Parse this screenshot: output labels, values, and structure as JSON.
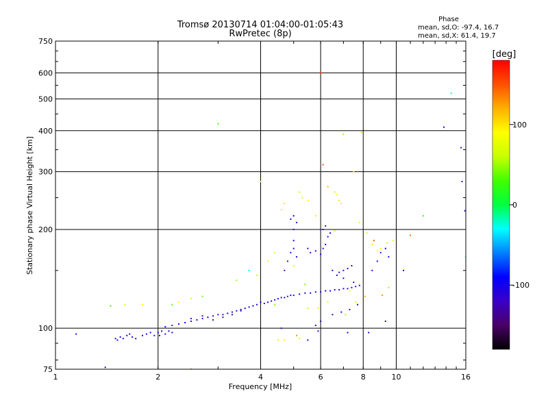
{
  "chart_data": {
    "type": "scatter",
    "title": "Tromsø 20130714 01:04:00-01:05:43",
    "subtitle": "RwPretec (8p)",
    "xlabel": "Frequency [MHz]",
    "ylabel": "Stationary phase Virtual Height [km]",
    "x_scale": "log",
    "y_scale": "log",
    "xlim": [
      1,
      16
    ],
    "ylim": [
      75,
      750
    ],
    "x_ticks": [
      1,
      2,
      4,
      6,
      8,
      10,
      16
    ],
    "y_ticks": [
      75,
      100,
      200,
      300,
      400,
      500,
      600,
      750
    ],
    "grid": true,
    "stats_header": "Phase",
    "stats_lines": [
      "mean, sd,O: -97.4, 16.7",
      "mean, sd,X:  61.4, 19.7"
    ],
    "colorbar": {
      "label": "[deg]",
      "min": -180,
      "max": 180,
      "ticks": [
        -100,
        0,
        100
      ],
      "colors": [
        "#000000",
        "#4a0068",
        "#3a00c8",
        "#0000ff",
        "#0080ff",
        "#00ffff",
        "#00ff40",
        "#40ff00",
        "#c8ff00",
        "#ffff00",
        "#ffb000",
        "#ff5000",
        "#ff0000"
      ]
    },
    "series": [
      {
        "points": [
          [
            1.15,
            96,
            -105
          ],
          [
            1.4,
            76,
            -100
          ],
          [
            1.5,
            93,
            -110
          ],
          [
            1.52,
            92,
            -105
          ],
          [
            1.55,
            94,
            -108
          ],
          [
            1.58,
            93,
            -112
          ],
          [
            1.62,
            95,
            -104
          ],
          [
            1.65,
            96,
            -106
          ],
          [
            1.68,
            94,
            -100
          ],
          [
            1.72,
            93,
            -110
          ],
          [
            1.8,
            95,
            -108
          ],
          [
            1.85,
            96,
            -104
          ],
          [
            1.9,
            97,
            -106
          ],
          [
            1.95,
            95,
            -112
          ],
          [
            2.0,
            97,
            -108
          ],
          [
            2.02,
            95,
            -102
          ],
          [
            2.05,
            98,
            -106
          ],
          [
            2.1,
            96,
            -110
          ],
          [
            2.15,
            98,
            -104
          ],
          [
            2.2,
            97,
            -108
          ],
          [
            2.1,
            101,
            -104
          ],
          [
            2.2,
            102,
            -110
          ],
          [
            2.3,
            103,
            -100
          ],
          [
            2.4,
            104,
            -106
          ],
          [
            2.5,
            105,
            -108
          ],
          [
            2.6,
            106,
            -104
          ],
          [
            2.7,
            107,
            -110
          ],
          [
            2.8,
            108,
            -102
          ],
          [
            2.9,
            109,
            -106
          ],
          [
            3.0,
            110,
            -108
          ],
          [
            3.1,
            110,
            -112
          ],
          [
            3.2,
            111,
            -104
          ],
          [
            3.3,
            112,
            -106
          ],
          [
            3.4,
            113,
            -110
          ],
          [
            3.5,
            114,
            -102
          ],
          [
            3.6,
            115,
            -108
          ],
          [
            3.7,
            116,
            -104
          ],
          [
            3.8,
            117,
            -106
          ],
          [
            3.9,
            118,
            -110
          ],
          [
            4.0,
            120,
            -104
          ],
          [
            4.1,
            119,
            -108
          ],
          [
            4.2,
            120,
            -106
          ],
          [
            4.3,
            121,
            -110
          ],
          [
            4.4,
            122,
            -104
          ],
          [
            4.5,
            123,
            -106
          ],
          [
            4.6,
            124,
            -108
          ],
          [
            4.7,
            124,
            -112
          ],
          [
            4.8,
            125,
            -104
          ],
          [
            4.9,
            126,
            -106
          ],
          [
            5.0,
            126,
            -108
          ],
          [
            5.2,
            127,
            -110
          ],
          [
            5.4,
            128,
            -104
          ],
          [
            5.6,
            128,
            -106
          ],
          [
            5.8,
            129,
            -108
          ],
          [
            6.0,
            129,
            -112
          ],
          [
            6.2,
            130,
            -104
          ],
          [
            6.4,
            130,
            -106
          ],
          [
            6.6,
            131,
            -108
          ],
          [
            6.8,
            131,
            -110
          ],
          [
            7.0,
            132,
            -104
          ],
          [
            7.2,
            132,
            -106
          ],
          [
            7.4,
            133,
            -108
          ],
          [
            7.6,
            134,
            -110
          ],
          [
            7.8,
            135,
            -104
          ],
          [
            2.5,
            107,
            -120
          ],
          [
            2.7,
            109,
            -125
          ],
          [
            2.9,
            106,
            -130
          ],
          [
            3.1,
            108,
            -128
          ],
          [
            3.3,
            110,
            -135
          ],
          [
            3.5,
            113,
            -122
          ],
          [
            4.7,
            150,
            -120
          ],
          [
            4.8,
            160,
            -115
          ],
          [
            4.9,
            170,
            -110
          ],
          [
            5.0,
            175,
            -105
          ],
          [
            5.1,
            165,
            -112
          ],
          [
            5.0,
            185,
            -100
          ],
          [
            5.0,
            200,
            -110
          ],
          [
            5.1,
            210,
            -105
          ],
          [
            4.9,
            215,
            -115
          ],
          [
            5.0,
            220,
            -108
          ],
          [
            5.5,
            175,
            -110
          ],
          [
            5.6,
            170,
            -106
          ],
          [
            5.8,
            172,
            -104
          ],
          [
            6.0,
            168,
            -108
          ],
          [
            6.1,
            175,
            -112
          ],
          [
            6.2,
            180,
            -106
          ],
          [
            6.3,
            190,
            -104
          ],
          [
            6.4,
            195,
            -108
          ],
          [
            6.1,
            200,
            -110
          ],
          [
            6.2,
            205,
            -106
          ],
          [
            6.5,
            150,
            -108
          ],
          [
            6.7,
            145,
            -104
          ],
          [
            6.8,
            148,
            -106
          ],
          [
            7.0,
            150,
            -110
          ],
          [
            7.2,
            152,
            -104
          ],
          [
            7.4,
            155,
            -106
          ],
          [
            7.0,
            142,
            -108
          ],
          [
            7.5,
            138,
            -110
          ],
          [
            8.5,
            150,
            -104
          ],
          [
            8.8,
            160,
            -106
          ],
          [
            9.0,
            170,
            -110
          ],
          [
            9.3,
            175,
            -104
          ],
          [
            9.5,
            165,
            -106
          ],
          [
            4.6,
            100,
            -112
          ],
          [
            5.5,
            92,
            -108
          ],
          [
            6.0,
            105,
            -110
          ],
          [
            7.2,
            97,
            -104
          ],
          [
            8.3,
            97,
            -106
          ],
          [
            9.3,
            105,
            -108
          ],
          [
            10.5,
            150,
            -110
          ],
          [
            13.8,
            410,
            -95
          ],
          [
            15.5,
            355,
            -100
          ],
          [
            15.6,
            280,
            -105
          ],
          [
            15.9,
            228,
            -110
          ],
          [
            5.8,
            102,
            -115
          ],
          [
            5.9,
            98,
            -118
          ],
          [
            6.5,
            110,
            -112
          ],
          [
            6.9,
            112,
            -110
          ],
          [
            7.3,
            114,
            -106
          ],
          [
            7.7,
            118,
            -104
          ]
        ]
      },
      {
        "points": [
          [
            1.45,
            117,
            30
          ],
          [
            1.6,
            118,
            80
          ],
          [
            1.8,
            118,
            95
          ],
          [
            2.3,
            120,
            90
          ],
          [
            2.5,
            123,
            70
          ],
          [
            2.7,
            125,
            40
          ],
          [
            3.0,
            420,
            30
          ],
          [
            3.4,
            140,
            50
          ],
          [
            3.9,
            145,
            60
          ],
          [
            4.0,
            280,
            70
          ],
          [
            4.2,
            160,
            90
          ],
          [
            4.4,
            170,
            100
          ],
          [
            4.6,
            230,
            80
          ],
          [
            4.7,
            240,
            100
          ],
          [
            5.0,
            155,
            90
          ],
          [
            5.2,
            260,
            60
          ],
          [
            5.3,
            250,
            80
          ],
          [
            5.5,
            245,
            90
          ],
          [
            5.8,
            220,
            100
          ],
          [
            6.0,
            600,
            160
          ],
          [
            6.1,
            315,
            150
          ],
          [
            6.3,
            270,
            120
          ],
          [
            6.6,
            260,
            100
          ],
          [
            6.7,
            255,
            90
          ],
          [
            6.8,
            245,
            100
          ],
          [
            6.9,
            240,
            95
          ],
          [
            7.0,
            390,
            110
          ],
          [
            7.5,
            300,
            100
          ],
          [
            7.9,
            395,
            100
          ],
          [
            7.8,
            210,
            80
          ],
          [
            8.2,
            195,
            60
          ],
          [
            8.5,
            180,
            100
          ],
          [
            8.8,
            172,
            90
          ],
          [
            9.0,
            175,
            95
          ],
          [
            9.4,
            182,
            100
          ],
          [
            9.8,
            185,
            80
          ],
          [
            11.0,
            192,
            140
          ],
          [
            12.0,
            220,
            20
          ],
          [
            14.5,
            520,
            -20
          ],
          [
            16.0,
            165,
            -10
          ],
          [
            4.5,
            92,
            100
          ],
          [
            4.7,
            92,
            95
          ],
          [
            5.2,
            93,
            85
          ],
          [
            5.5,
            115,
            60
          ],
          [
            5.9,
            115,
            80
          ],
          [
            6.3,
            120,
            70
          ],
          [
            7.1,
            110,
            50
          ],
          [
            7.6,
            120,
            100
          ],
          [
            7.3,
            130,
            90
          ],
          [
            8.1,
            125,
            120
          ],
          [
            9.1,
            126,
            130
          ],
          [
            9.5,
            133,
            110
          ],
          [
            8.6,
            185,
            150
          ],
          [
            6.6,
            198,
            60
          ],
          [
            5.4,
            136,
            40
          ],
          [
            5.1,
            95,
            130
          ],
          [
            3.7,
            150,
            -30
          ],
          [
            4.4,
            118,
            40
          ],
          [
            2.2,
            118,
            30
          ],
          [
            2.5,
            75,
            150
          ]
        ]
      }
    ]
  }
}
